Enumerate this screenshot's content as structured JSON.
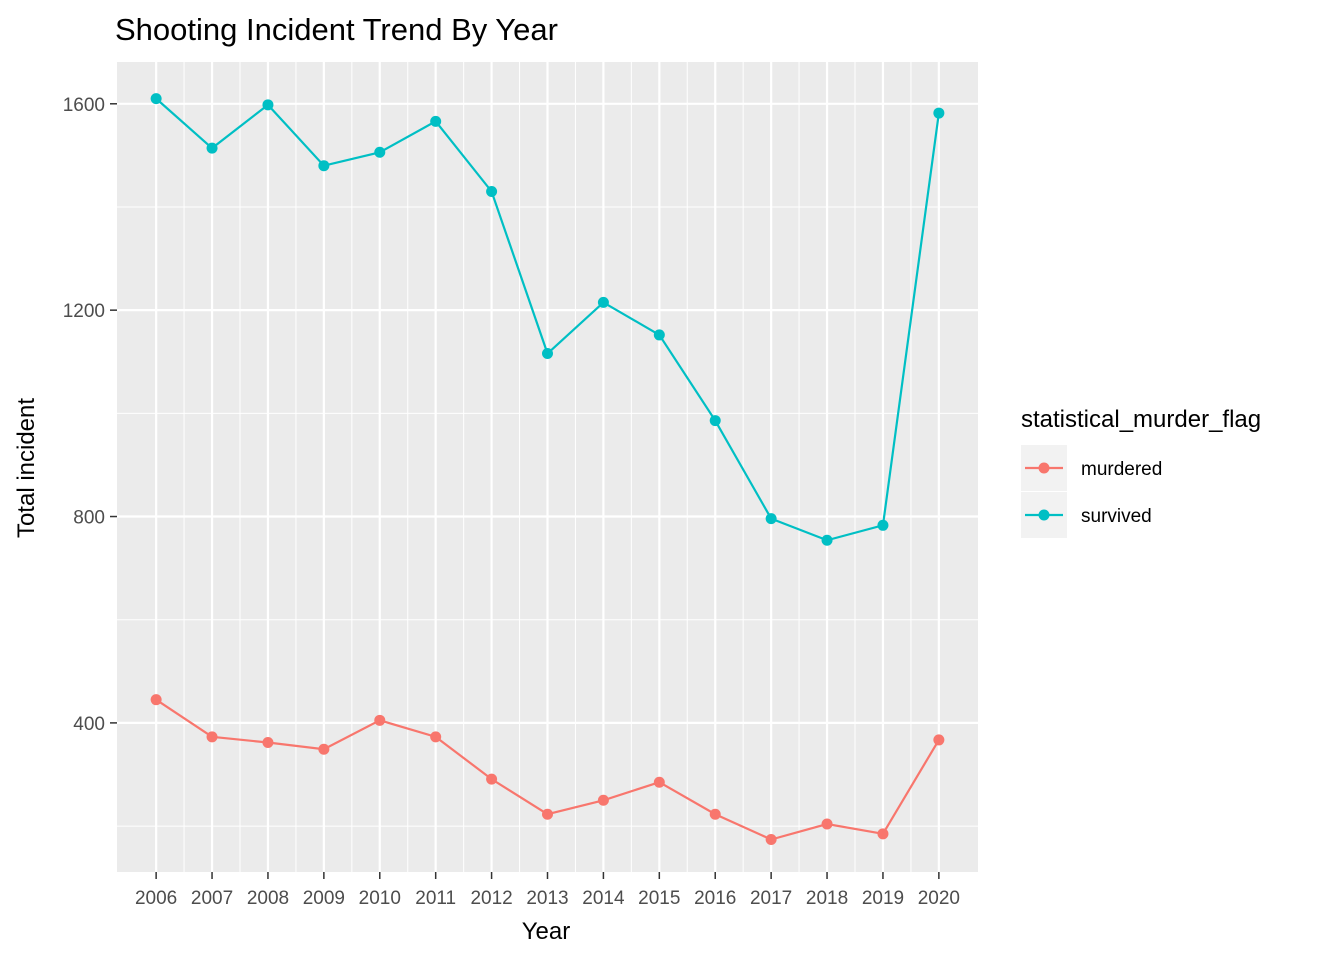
{
  "chart_data": {
    "type": "line",
    "title": "Shooting Incident Trend By Year",
    "xlabel": "Year",
    "ylabel": "Total incident",
    "x": [
      2006,
      2007,
      2008,
      2009,
      2010,
      2011,
      2012,
      2013,
      2014,
      2015,
      2016,
      2017,
      2018,
      2019,
      2020
    ],
    "x_tick_labels": [
      "2006",
      "2007",
      "2008",
      "2009",
      "2010",
      "2011",
      "2012",
      "2013",
      "2014",
      "2015",
      "2016",
      "2017",
      "2018",
      "2019",
      "2020"
    ],
    "xlim": [
      2005.3,
      2020.7
    ],
    "y_ticks": [
      400,
      800,
      1200,
      1600
    ],
    "y_tick_labels": [
      "400",
      "800",
      "1200",
      "1600"
    ],
    "ylim": [
      111,
      1681
    ],
    "grid": true,
    "legend": {
      "title": "statistical_murder_flag",
      "position": "right"
    },
    "series": [
      {
        "name": "murdered",
        "color": "#F8766D",
        "values": [
          445,
          373,
          362,
          349,
          405,
          373,
          291,
          223,
          250,
          285,
          223,
          174,
          204,
          185,
          367
        ]
      },
      {
        "name": "survived",
        "color": "#00BFC4",
        "values": [
          1610,
          1514,
          1598,
          1480,
          1506,
          1566,
          1430,
          1116,
          1215,
          1152,
          986,
          796,
          754,
          783,
          1582
        ]
      }
    ],
    "colors": {
      "panel_background": "#EBEBEB",
      "grid_line": "#FFFFFF",
      "tick_label": "#4D4D4D",
      "legend_key_background": "#F2F2F2"
    }
  }
}
